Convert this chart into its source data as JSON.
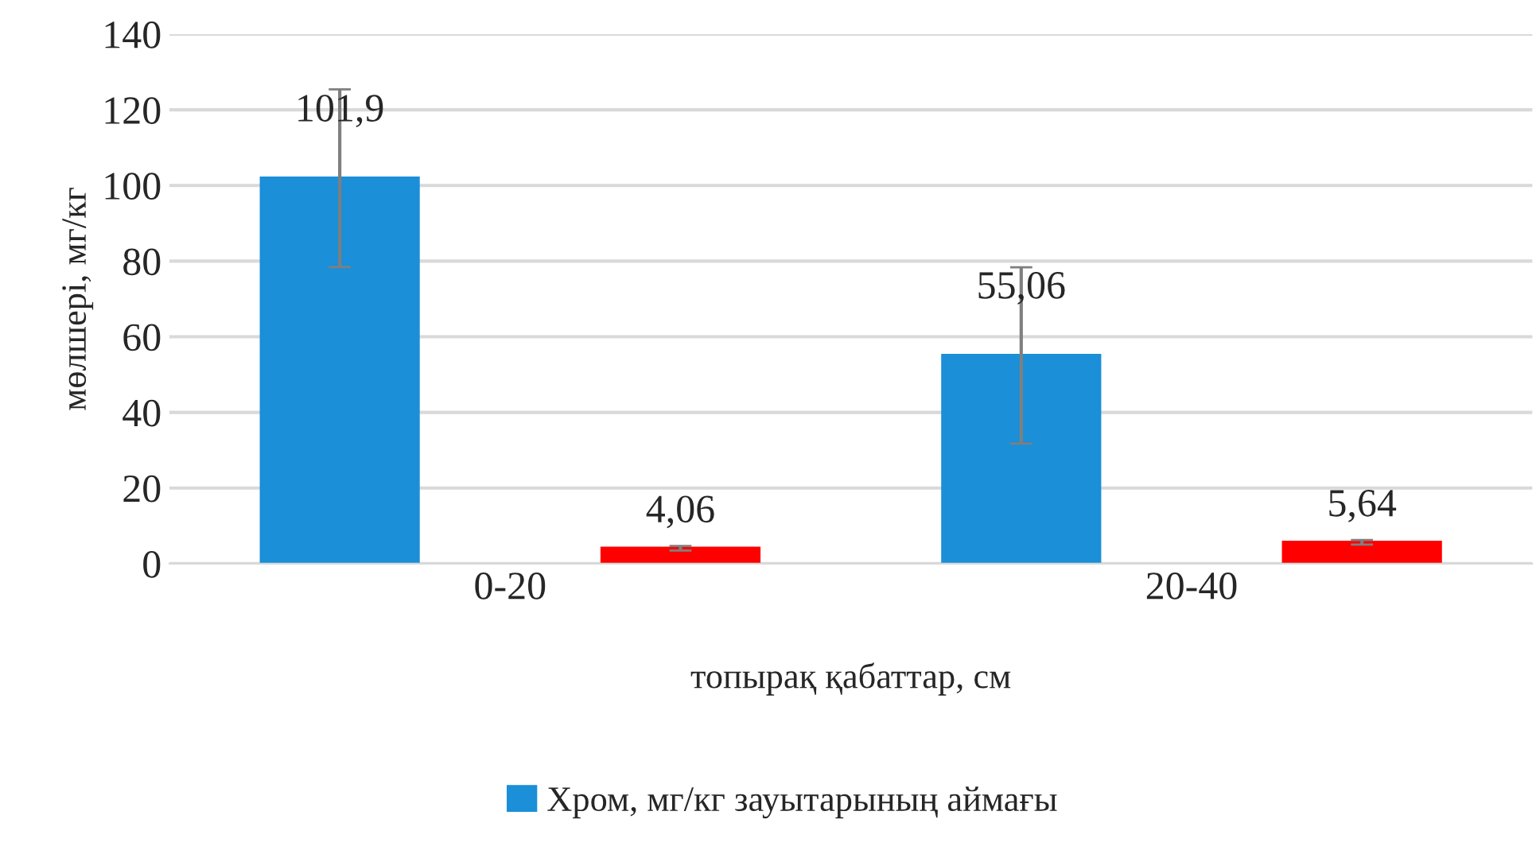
{
  "chart_data": {
    "type": "bar",
    "xlabel": "топырақ қабаттар, см",
    "ylabel": "мөлшері, мг/кг",
    "categories": [
      "0-20",
      "20-40"
    ],
    "series": [
      {
        "name": "Хром, мг/кг зауытарының аймағы",
        "color": "#1b8fd8",
        "values": [
          101.9,
          55.06
        ],
        "errors": [
          23.5,
          23.3
        ],
        "value_labels": [
          "101,9",
          "55,06"
        ]
      },
      {
        "color": "#ff0000",
        "values": [
          4.06,
          5.64
        ],
        "errors": [
          0.6,
          0.6
        ],
        "value_labels": [
          "4,06",
          "5,64"
        ]
      }
    ],
    "ylim": [
      0,
      140
    ],
    "yticks": [
      0,
      20,
      40,
      60,
      80,
      100,
      120,
      140
    ],
    "grid": "y",
    "legend": "bottom"
  }
}
